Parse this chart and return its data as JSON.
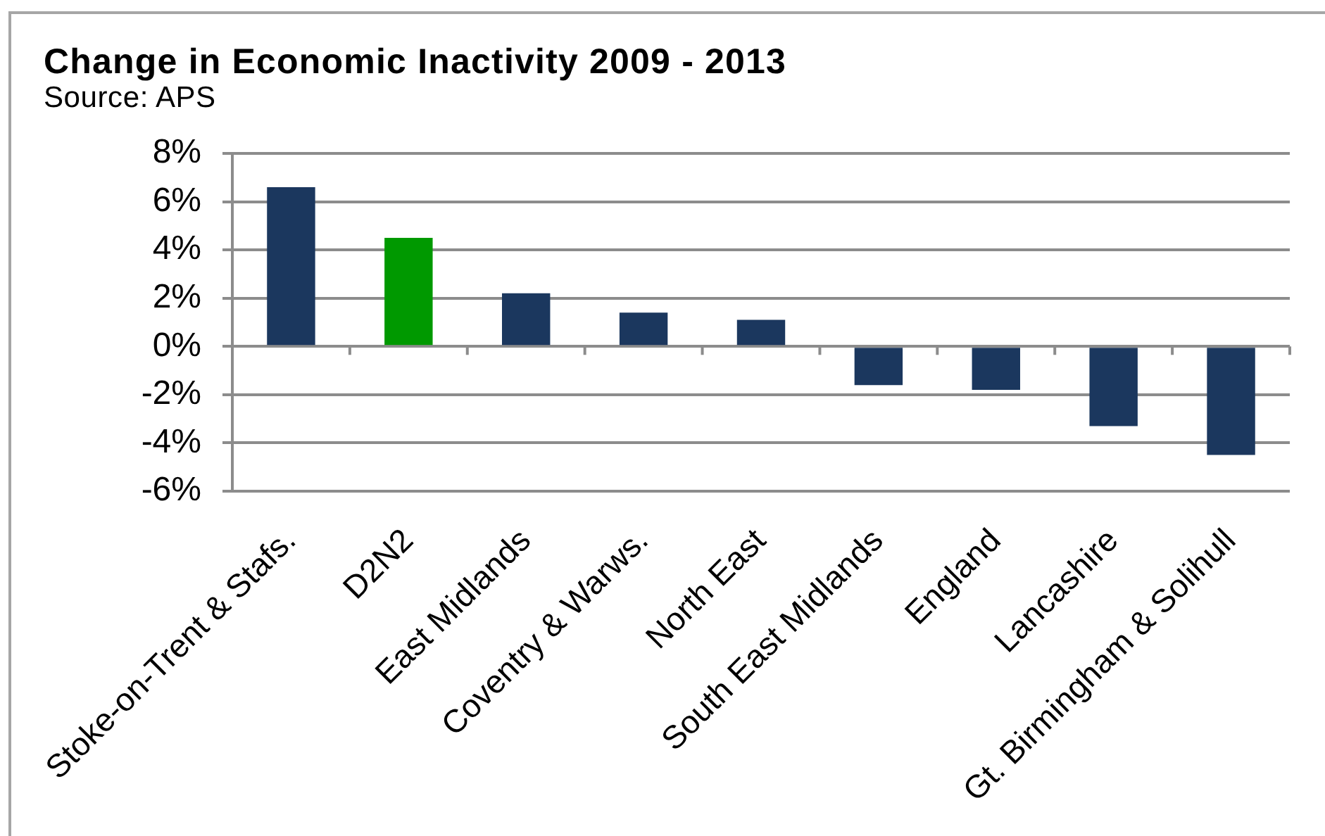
{
  "chart_data": {
    "type": "bar",
    "title": "Change in Economic Inactivity 2009 - 2013",
    "annotations": [
      "Source: APS"
    ],
    "categories": [
      "Stoke-on-Trent & Stafs.",
      "D2N2",
      "East Midlands",
      "Coventry & Warws.",
      "North East",
      "South East Midlands",
      "England",
      "Lancashire",
      "Gt. Birmingham & Solihull"
    ],
    "values": [
      6.6,
      4.5,
      2.2,
      1.4,
      1.1,
      -1.6,
      -1.8,
      -3.3,
      -4.5
    ],
    "colors": [
      "#1b375e",
      "#009900",
      "#1b375e",
      "#1b375e",
      "#1b375e",
      "#1b375e",
      "#1b375e",
      "#1b375e",
      "#1b375e"
    ],
    "ylim": [
      -6,
      8
    ],
    "yticks": [
      {
        "value": -6,
        "label": "-6%"
      },
      {
        "value": -4,
        "label": "-4%"
      },
      {
        "value": -2,
        "label": "-2%"
      },
      {
        "value": 0,
        "label": "0%"
      },
      {
        "value": 2,
        "label": "2%"
      },
      {
        "value": 4,
        "label": "4%"
      },
      {
        "value": 6,
        "label": "6%"
      },
      {
        "value": 8,
        "label": "8%"
      }
    ],
    "grid": "y"
  }
}
